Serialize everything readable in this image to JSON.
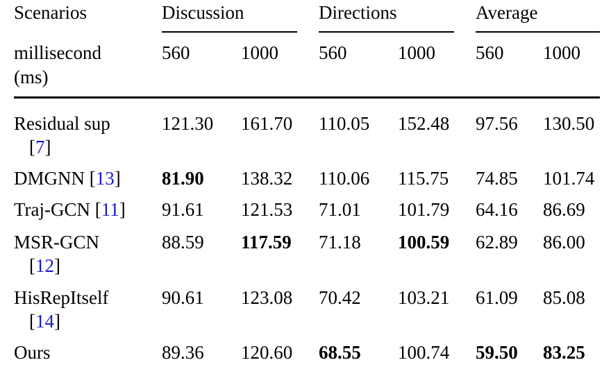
{
  "header": {
    "scenarios_label": "Scenarios",
    "groups": [
      "Discussion",
      "Directions",
      "Average"
    ],
    "unit_line1": "millisecond",
    "unit_line2": "(ms)",
    "subcols": [
      "560",
      "1000",
      "560",
      "1000",
      "560",
      "1000"
    ]
  },
  "rows": [
    {
      "method_line1": "Residual sup",
      "method_line2_ref": "7",
      "values": [
        "121.30",
        "161.70",
        "110.05",
        "152.48",
        "97.56",
        "130.50"
      ],
      "bold": [
        false,
        false,
        false,
        false,
        false,
        false
      ]
    },
    {
      "method_line1": "DMGNN",
      "method_ref_inline": "13",
      "values": [
        "81.90",
        "138.32",
        "110.06",
        "115.75",
        "74.85",
        "101.74"
      ],
      "bold": [
        true,
        false,
        false,
        false,
        false,
        false
      ]
    },
    {
      "method_line1": "Traj-GCN",
      "method_ref_inline": "11",
      "values": [
        "91.61",
        "121.53",
        "71.01",
        "101.79",
        "64.16",
        "86.69"
      ],
      "bold": [
        false,
        false,
        false,
        false,
        false,
        false
      ]
    },
    {
      "method_line1": "MSR-GCN",
      "method_line2_ref": "12",
      "values": [
        "88.59",
        "117.59",
        "71.18",
        "100.59",
        "62.89",
        "86.00"
      ],
      "bold": [
        false,
        true,
        false,
        true,
        false,
        false
      ]
    },
    {
      "method_line1": "HisRepItself",
      "method_line2_ref": "14",
      "values": [
        "90.61",
        "123.08",
        "70.42",
        "103.21",
        "61.09",
        "85.08"
      ],
      "bold": [
        false,
        false,
        false,
        false,
        false,
        false
      ]
    },
    {
      "method_line1": "Ours",
      "values": [
        "89.36",
        "120.60",
        "68.55",
        "100.74",
        "59.50",
        "83.25"
      ],
      "bold": [
        false,
        false,
        true,
        false,
        true,
        true
      ]
    }
  ]
}
